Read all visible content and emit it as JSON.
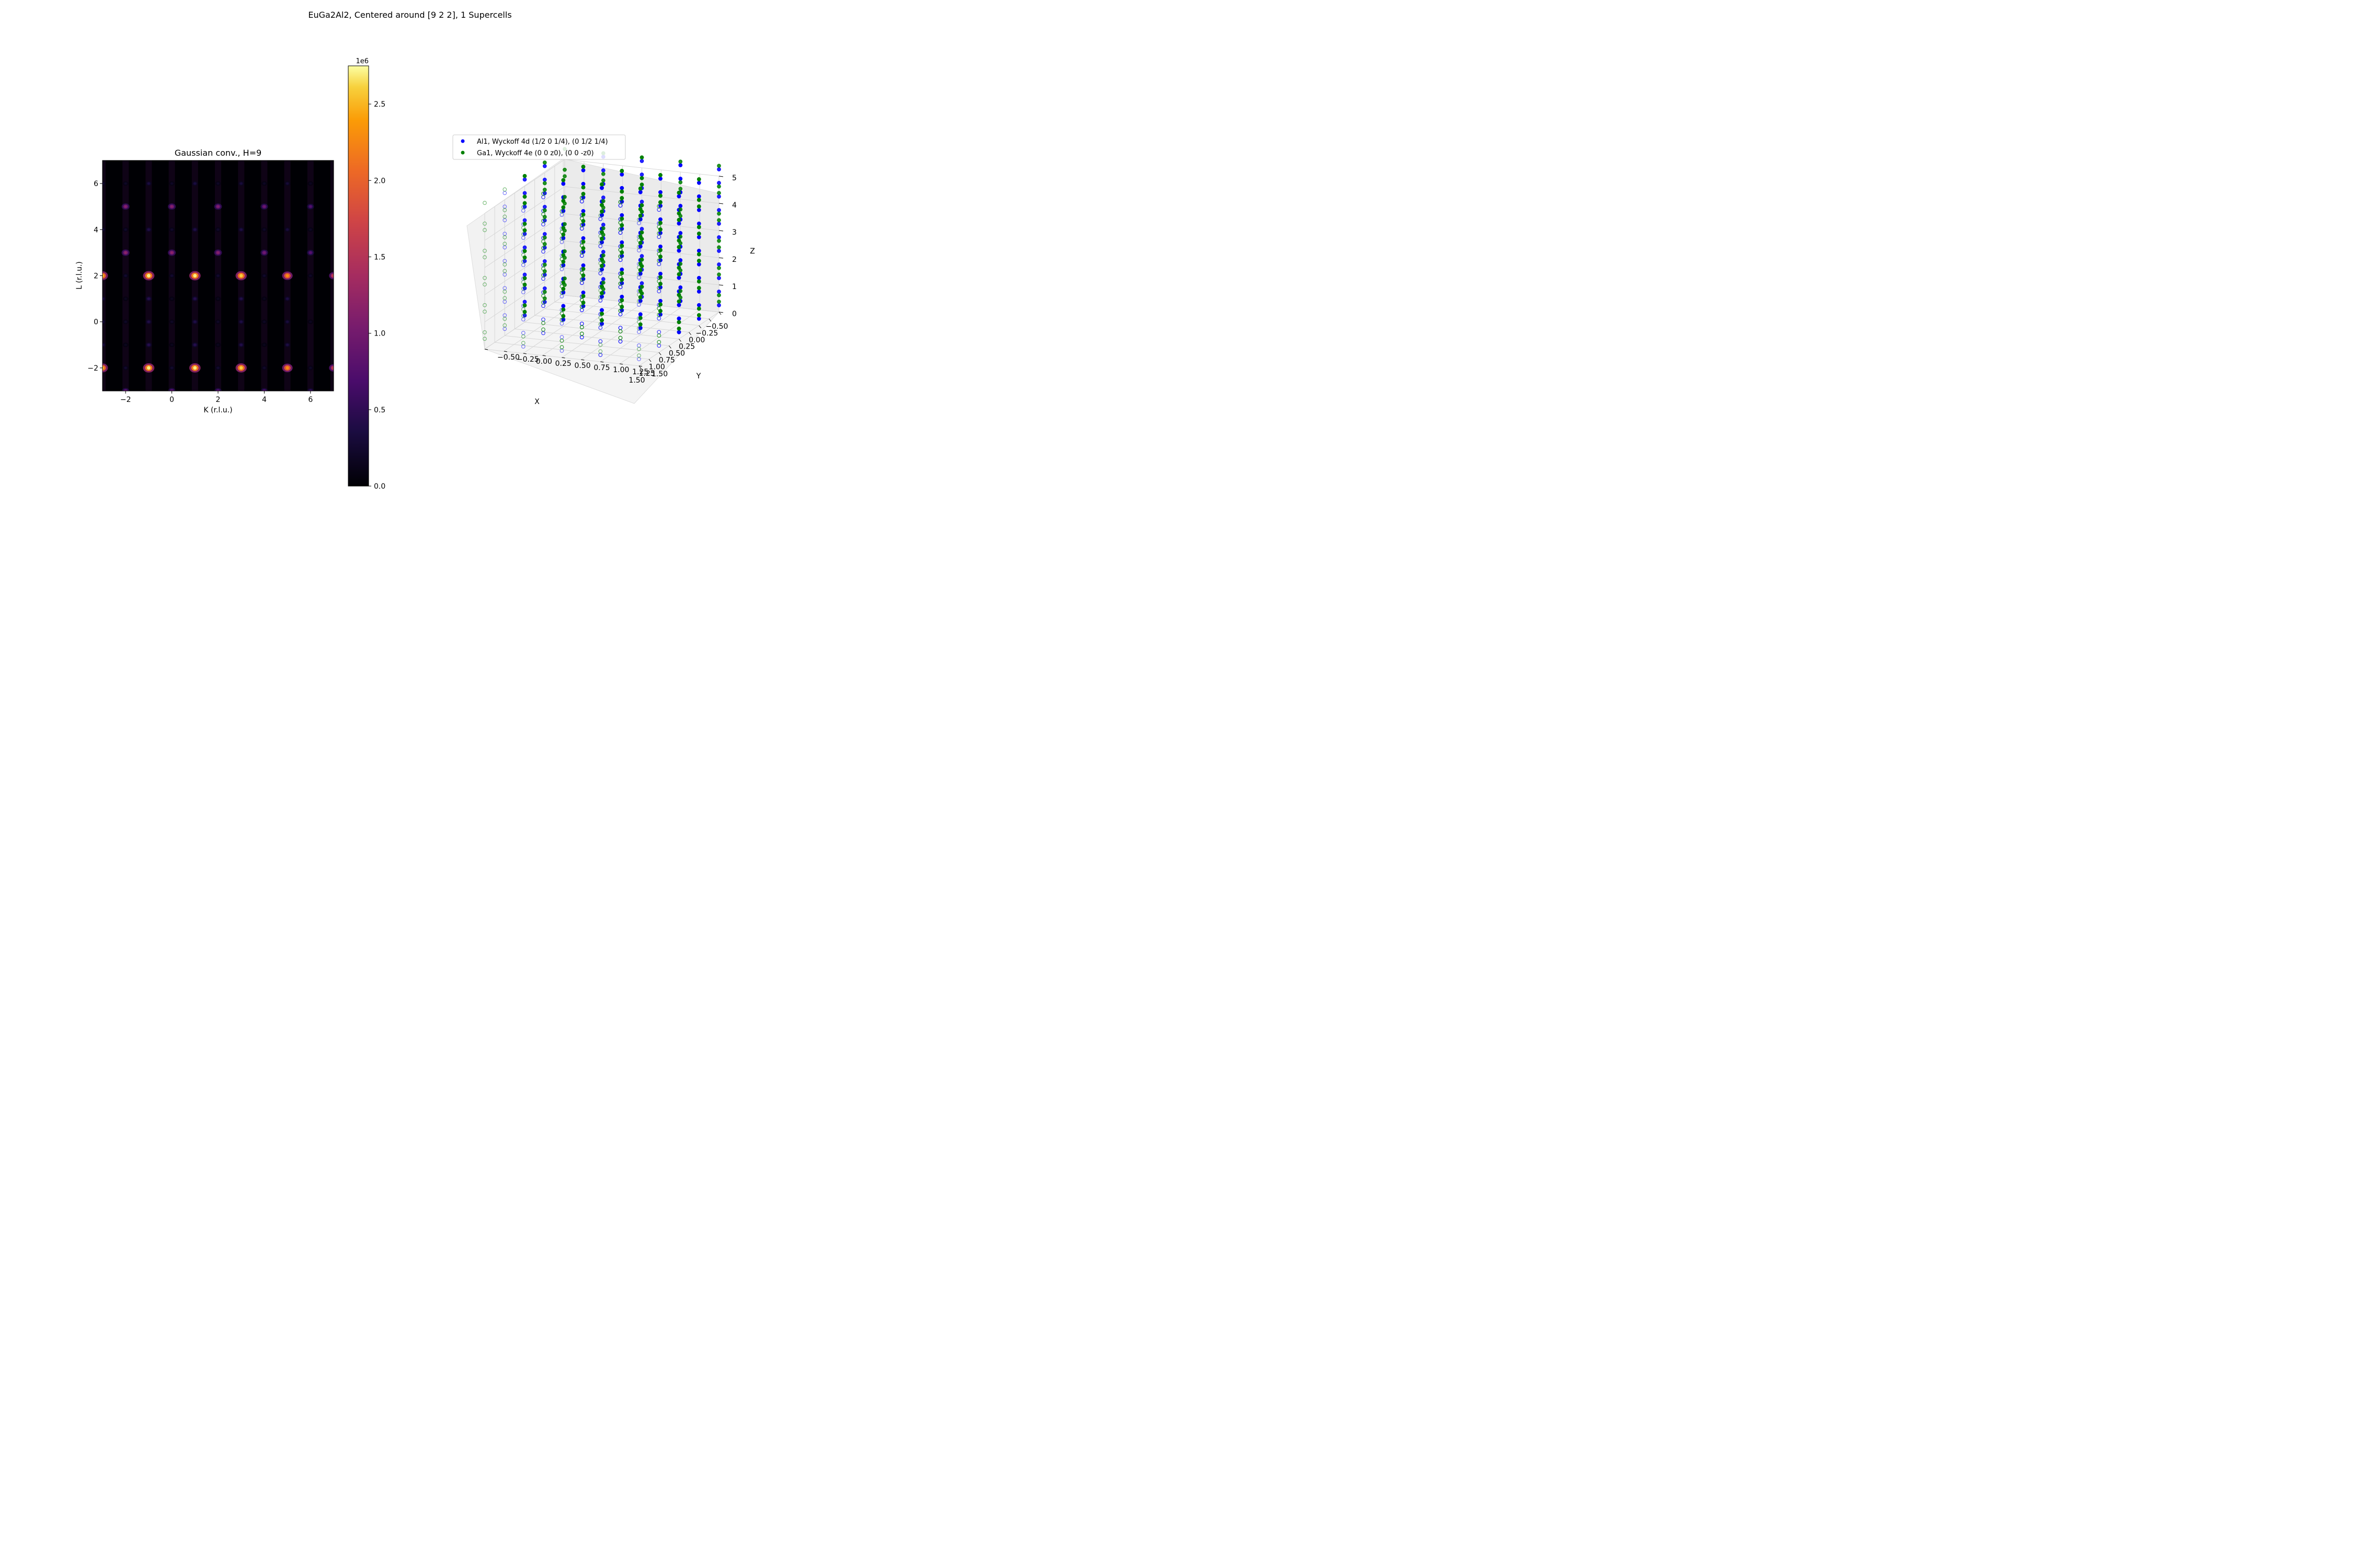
{
  "figure": {
    "suptitle": "EuGa2Al2, Centered around [9 2 2], 1 Supercells"
  },
  "chart_data": [
    {
      "type": "heatmap",
      "title": "Gaussian conv., H=9",
      "xlabel": "K (r.l.u.)",
      "ylabel": "L (r.l.u.)",
      "xlim": [
        -3,
        7
      ],
      "ylim": [
        -3,
        7
      ],
      "xticks": [
        -2,
        0,
        2,
        4,
        6
      ],
      "yticks": [
        -2,
        0,
        2,
        4,
        6
      ],
      "colormap": "inferno",
      "colorbar": {
        "min": 0,
        "max": 2750000,
        "ticks": [
          "0.0",
          "0.5",
          "1.0",
          "1.5",
          "2.0",
          "2.5"
        ],
        "tick_values": [
          0,
          0.5,
          1.0,
          1.5,
          2.0,
          2.5
        ],
        "max_scaled": 2.75,
        "offset_label": "1e6"
      },
      "peaks": [
        {
          "k": -3,
          "l": 2,
          "value": 2500000
        },
        {
          "k": -1,
          "l": 2,
          "value": 2700000
        },
        {
          "k": 1,
          "l": 2,
          "value": 2700000
        },
        {
          "k": 3,
          "l": 2,
          "value": 2600000
        },
        {
          "k": 5,
          "l": 2,
          "value": 2300000
        },
        {
          "k": 7,
          "l": 2,
          "value": 1700000
        },
        {
          "k": -3,
          "l": -2,
          "value": 2500000
        },
        {
          "k": -1,
          "l": -2,
          "value": 2700000
        },
        {
          "k": 1,
          "l": -2,
          "value": 2700000
        },
        {
          "k": 3,
          "l": -2,
          "value": 2600000
        },
        {
          "k": 5,
          "l": -2,
          "value": 2300000
        },
        {
          "k": 7,
          "l": -2,
          "value": 1700000
        },
        {
          "k": -2,
          "l": 3,
          "value": 1200000
        },
        {
          "k": 0,
          "l": 3,
          "value": 1200000
        },
        {
          "k": 2,
          "l": 3,
          "value": 1150000
        },
        {
          "k": 4,
          "l": 3,
          "value": 1000000
        },
        {
          "k": 6,
          "l": 3,
          "value": 800000
        },
        {
          "k": -2,
          "l": 5,
          "value": 1150000
        },
        {
          "k": 0,
          "l": 5,
          "value": 1150000
        },
        {
          "k": 2,
          "l": 5,
          "value": 1100000
        },
        {
          "k": 4,
          "l": 5,
          "value": 950000
        },
        {
          "k": 6,
          "l": 5,
          "value": 750000
        },
        {
          "k": -2,
          "l": -3,
          "value": 900000
        },
        {
          "k": 0,
          "l": -3,
          "value": 900000
        },
        {
          "k": 2,
          "l": -3,
          "value": 850000
        },
        {
          "k": 4,
          "l": -3,
          "value": 750000
        },
        {
          "k": 6,
          "l": -3,
          "value": 600000
        },
        {
          "k": -3,
          "l": 6,
          "value": 300000
        },
        {
          "k": -1,
          "l": 6,
          "value": 350000
        },
        {
          "k": 1,
          "l": 6,
          "value": 350000
        },
        {
          "k": 3,
          "l": 6,
          "value": 320000
        },
        {
          "k": 5,
          "l": 6,
          "value": 300000
        },
        {
          "k": -3,
          "l": 4,
          "value": 350000
        },
        {
          "k": -1,
          "l": 4,
          "value": 400000
        },
        {
          "k": 1,
          "l": 4,
          "value": 400000
        },
        {
          "k": 3,
          "l": 4,
          "value": 380000
        },
        {
          "k": 5,
          "l": 4,
          "value": 330000
        },
        {
          "k": -3,
          "l": 1,
          "value": 400000
        },
        {
          "k": -1,
          "l": 1,
          "value": 450000
        },
        {
          "k": 1,
          "l": 1,
          "value": 450000
        },
        {
          "k": 3,
          "l": 1,
          "value": 420000
        },
        {
          "k": 5,
          "l": 1,
          "value": 380000
        },
        {
          "k": -3,
          "l": 0,
          "value": 350000
        },
        {
          "k": -1,
          "l": 0,
          "value": 400000
        },
        {
          "k": 1,
          "l": 0,
          "value": 400000
        },
        {
          "k": 3,
          "l": 0,
          "value": 380000
        },
        {
          "k": 5,
          "l": 0,
          "value": 330000
        },
        {
          "k": -3,
          "l": -1,
          "value": 400000
        },
        {
          "k": -1,
          "l": -1,
          "value": 450000
        },
        {
          "k": 1,
          "l": -1,
          "value": 450000
        },
        {
          "k": 3,
          "l": -1,
          "value": 420000
        },
        {
          "k": 5,
          "l": -1,
          "value": 380000
        },
        {
          "k": -2,
          "l": 2,
          "value": 250000
        },
        {
          "k": 0,
          "l": 2,
          "value": 250000
        },
        {
          "k": 2,
          "l": 2,
          "value": 250000
        },
        {
          "k": 4,
          "l": 2,
          "value": 230000
        },
        {
          "k": 6,
          "l": 2,
          "value": 200000
        },
        {
          "k": -2,
          "l": -2,
          "value": 250000
        },
        {
          "k": 0,
          "l": -2,
          "value": 250000
        },
        {
          "k": 2,
          "l": -2,
          "value": 250000
        },
        {
          "k": 4,
          "l": -2,
          "value": 230000
        },
        {
          "k": 6,
          "l": -2,
          "value": 200000
        },
        {
          "k": -2,
          "l": 0,
          "value": 200000
        },
        {
          "k": 0,
          "l": 0,
          "value": 200000
        },
        {
          "k": 2,
          "l": 0,
          "value": 200000
        },
        {
          "k": 4,
          "l": 0,
          "value": 180000
        },
        {
          "k": 6,
          "l": 0,
          "value": 160000
        },
        {
          "k": -2,
          "l": 6,
          "value": 200000
        },
        {
          "k": 0,
          "l": 6,
          "value": 200000
        },
        {
          "k": 2,
          "l": 6,
          "value": 200000
        },
        {
          "k": 4,
          "l": 6,
          "value": 180000
        },
        {
          "k": 6,
          "l": 6,
          "value": 160000
        },
        {
          "k": -2,
          "l": 4,
          "value": 220000
        },
        {
          "k": 0,
          "l": 4,
          "value": 220000
        },
        {
          "k": 2,
          "l": 4,
          "value": 220000
        },
        {
          "k": 4,
          "l": 4,
          "value": 200000
        },
        {
          "k": 6,
          "l": 4,
          "value": 180000
        },
        {
          "k": -2,
          "l": 1,
          "value": 150000
        },
        {
          "k": 0,
          "l": 1,
          "value": 150000
        },
        {
          "k": 2,
          "l": 1,
          "value": 150000
        },
        {
          "k": 4,
          "l": 1,
          "value": 140000
        },
        {
          "k": -2,
          "l": -1,
          "value": 150000
        },
        {
          "k": 0,
          "l": -1,
          "value": 150000
        },
        {
          "k": 2,
          "l": -1,
          "value": 150000
        },
        {
          "k": 4,
          "l": -1,
          "value": 140000
        }
      ]
    },
    {
      "type": "scatter",
      "xlabel": "X",
      "ylabel": "Y",
      "zlabel": "Z",
      "xlim": [
        -0.5,
        1.5
      ],
      "ylim": [
        -0.5,
        1.5
      ],
      "zlim": [
        0,
        5
      ],
      "xticks": [
        "−0.50",
        "−0.25",
        "0.00",
        "0.25",
        "0.50",
        "0.75",
        "1.00",
        "1.25",
        "1.50"
      ],
      "yticks": [
        "−0.50",
        "−0.25",
        "0.00",
        "0.25",
        "0.50",
        "0.75",
        "1.00",
        "1.25",
        "1.50"
      ],
      "zticks": [
        "0",
        "1",
        "2",
        "3",
        "4",
        "5"
      ],
      "x_tick_values": [
        -0.5,
        -0.25,
        0,
        0.25,
        0.5,
        0.75,
        1.0,
        1.25,
        1.5
      ],
      "y_tick_values": [
        -0.5,
        -0.25,
        0,
        0.25,
        0.5,
        0.75,
        1.0,
        1.25,
        1.5
      ],
      "z_tick_values": [
        0,
        1,
        2,
        3,
        4,
        5
      ],
      "legend_location": "upper left",
      "series": [
        {
          "name": "Al1, Wyckoff 4d (1/2 0 1/4), (0 1/2 1/4)",
          "color": "#0000ff",
          "x": [
            0.5,
            0.0,
            0.5,
            1.0,
            0.0,
            1.0,
            0.5,
            0.0,
            0.5,
            1.0,
            0.0,
            1.0
          ],
          "y": [
            0.0,
            0.5,
            1.0,
            0.5,
            1.5,
            1.5,
            0.0,
            0.5,
            1.0,
            0.5,
            1.5,
            1.5
          ],
          "z": [
            0.25,
            0.25,
            0.25,
            0.25,
            0.25,
            0.25,
            0.75,
            0.75,
            0.75,
            0.75,
            0.75,
            0.75
          ]
        },
        {
          "name": "Ga1, Wyckoff 4e (0 0 z0), (0 0 -z0)",
          "color": "#008000",
          "x": [
            0.0,
            0.5,
            1.0,
            0.0,
            0.5,
            1.0,
            0.0,
            0.5,
            1.0,
            0.0,
            0.5,
            1.0
          ],
          "y": [
            0.0,
            0.5,
            0.0,
            1.0,
            1.5,
            1.0,
            0.0,
            0.5,
            0.0,
            1.0,
            1.5,
            1.0
          ],
          "z": [
            0.38,
            0.38,
            0.38,
            0.38,
            0.38,
            0.38,
            0.62,
            0.62,
            0.62,
            0.62,
            0.62,
            0.62
          ]
        }
      ]
    }
  ]
}
